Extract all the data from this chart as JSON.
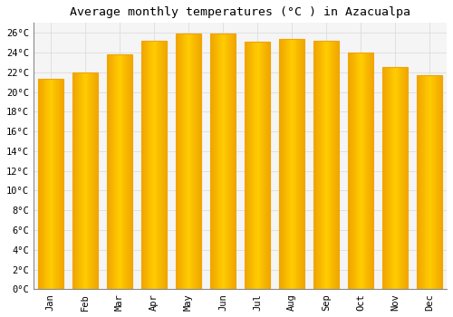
{
  "title": "Average monthly temperatures (°C ) in Azacualpa",
  "months": [
    "Jan",
    "Feb",
    "Mar",
    "Apr",
    "May",
    "Jun",
    "Jul",
    "Aug",
    "Sep",
    "Oct",
    "Nov",
    "Dec"
  ],
  "values": [
    21.3,
    22.0,
    23.8,
    25.2,
    25.9,
    25.9,
    25.1,
    25.4,
    25.2,
    24.0,
    22.5,
    21.7
  ],
  "bar_color_center": "#FFD966",
  "bar_color_edge": "#F0A500",
  "background_color": "#ffffff",
  "plot_bg_color": "#f5f5f5",
  "grid_color": "#dddddd",
  "title_fontsize": 9.5,
  "tick_fontsize": 7.5,
  "ylim": [
    0,
    27
  ],
  "ytick_step": 2,
  "font_family": "monospace"
}
